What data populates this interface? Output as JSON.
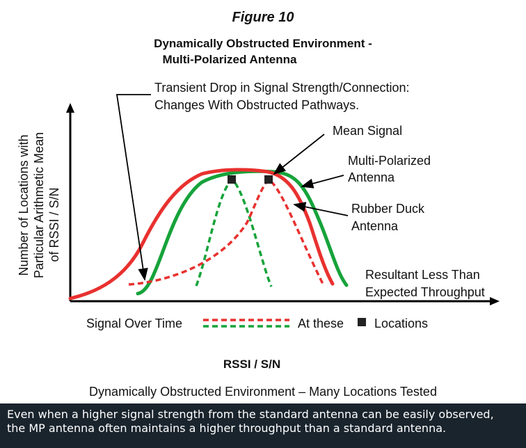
{
  "figure_label": "Figure 10",
  "title_line1": "Dynamically Obstructed Environment -",
  "title_line2": "Multi-Polarized Antenna",
  "annotations": {
    "transient_line1": "Transient Drop in Signal Strength/Connection:",
    "transient_line2": "Changes With Obstructed Pathways.",
    "mean_signal": "Mean Signal",
    "mp_antenna_line1": "Multi-Polarized",
    "mp_antenna_line2": "Antenna",
    "rubber_line1": "Rubber Duck",
    "rubber_line2": "Antenna",
    "resultant_line1": "Resultant Less Than",
    "resultant_line2": "Expected Throughput"
  },
  "y_axis_label": {
    "line1": "Number of Locations with",
    "line2": "Particular Arithmetic Mean",
    "line3": "of  RSSI / S/N"
  },
  "legend": {
    "signal_over_time": "Signal Over Time",
    "at_these": "At these",
    "locations": "Locations"
  },
  "x_axis_label": "RSSI / S/N",
  "subtitle": "Dynamically Obstructed Environment – Many Locations Tested",
  "caption": {
    "line1": "Even when a higher signal strength from the standard antenna can be easily observed,",
    "line2": "the MP antenna often maintains a higher throughput than a standard antenna."
  },
  "colors": {
    "red_curve": "#e8312f",
    "green_curve": "#16a33a",
    "caption_bg": "#1a242d",
    "arrow": "#000000"
  }
}
